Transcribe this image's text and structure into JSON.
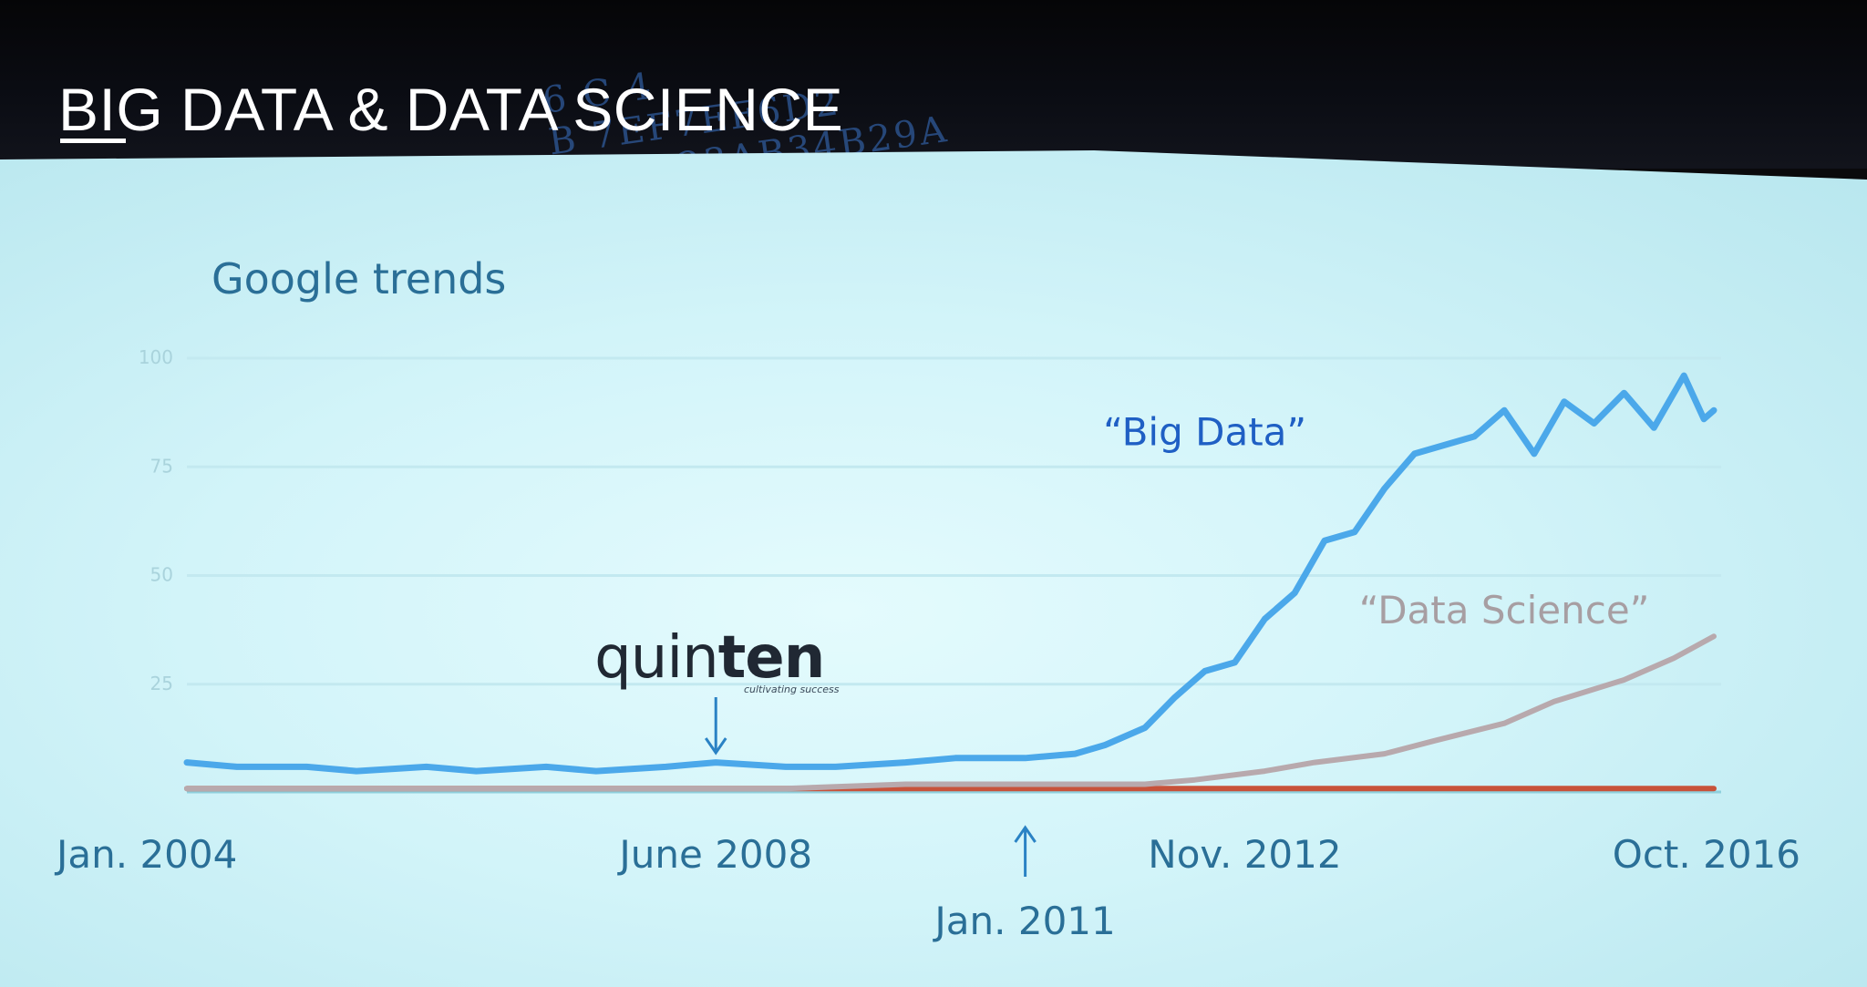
{
  "slide": {
    "title": "BIG DATA & DATA SCIENCE",
    "hex_decoration": [
      "6            C 4",
      "B   7EF7EF6D2",
      "90  AB23AB34B29A",
      "       F"
    ]
  },
  "chart_data": {
    "type": "line",
    "title": "Google trends",
    "xlabel": "",
    "ylabel": "",
    "ylim": [
      0,
      100
    ],
    "y_ticks": [
      25,
      50,
      75,
      100
    ],
    "x_range": [
      "2004-01",
      "2016-10"
    ],
    "grid": true,
    "series": [
      {
        "name": "“Big Data”",
        "color": "#4ba8ea",
        "x": [
          "2004-01",
          "2004-06",
          "2005-01",
          "2005-06",
          "2006-01",
          "2006-06",
          "2007-01",
          "2007-06",
          "2008-01",
          "2008-06",
          "2009-01",
          "2009-06",
          "2010-01",
          "2010-06",
          "2011-01",
          "2011-06",
          "2011-09",
          "2012-01",
          "2012-04",
          "2012-07",
          "2012-10",
          "2013-01",
          "2013-04",
          "2013-07",
          "2013-10",
          "2014-01",
          "2014-04",
          "2014-07",
          "2014-10",
          "2015-01",
          "2015-04",
          "2015-07",
          "2015-10",
          "2016-01",
          "2016-04",
          "2016-07",
          "2016-09",
          "2016-10"
        ],
        "values": [
          7,
          6,
          6,
          5,
          6,
          5,
          6,
          5,
          6,
          7,
          6,
          6,
          7,
          8,
          8,
          9,
          11,
          15,
          22,
          28,
          30,
          40,
          46,
          58,
          60,
          70,
          78,
          80,
          82,
          88,
          78,
          90,
          85,
          92,
          84,
          96,
          86,
          88
        ]
      },
      {
        "name": "“Data Science”",
        "color": "#b8a9ad",
        "x": [
          "2004-01",
          "2005-01",
          "2006-01",
          "2007-01",
          "2008-01",
          "2009-01",
          "2010-01",
          "2011-01",
          "2011-06",
          "2012-01",
          "2012-06",
          "2013-01",
          "2013-06",
          "2014-01",
          "2014-06",
          "2015-01",
          "2015-06",
          "2016-01",
          "2016-06",
          "2016-10"
        ],
        "values": [
          1,
          1,
          1,
          1,
          1,
          1,
          2,
          2,
          2,
          2,
          3,
          5,
          7,
          9,
          12,
          16,
          21,
          26,
          31,
          36
        ]
      },
      {
        "name": "",
        "color": "#c8523a",
        "x": [
          "2004-01",
          "2016-10"
        ],
        "values": [
          1,
          1
        ]
      }
    ],
    "x_labels": [
      {
        "text": "Jan. 2004",
        "x": "2004-01"
      },
      {
        "text": "June 2008",
        "x": "2008-06"
      },
      {
        "text": "Nov. 2012",
        "x": "2012-11"
      },
      {
        "text": "Oct. 2016",
        "x": "2016-10"
      }
    ],
    "markers": [
      {
        "text": "Jan. 2011",
        "x": "2011-01",
        "direction": "up"
      },
      {
        "text": "",
        "x": "2008-06",
        "direction": "down"
      }
    ],
    "series_labels": [
      {
        "text": "“Big Data”",
        "color": "#1f5fc4",
        "x": "2012-07",
        "y": 80
      },
      {
        "text": "“Data Science”",
        "color": "#a79ea2",
        "x": "2015-01",
        "y": 39
      }
    ],
    "logo": {
      "name": "quinten",
      "text_light": "quin",
      "text_bold": "ten",
      "tagline": "cultivating success",
      "x": "2008-06"
    }
  }
}
